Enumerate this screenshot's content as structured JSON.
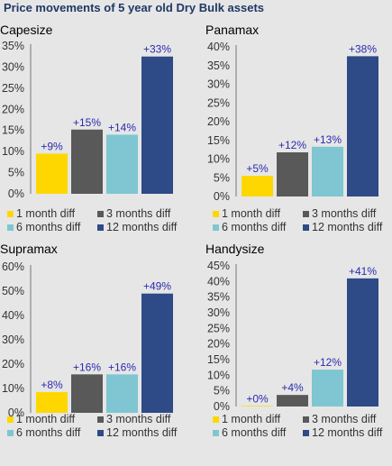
{
  "title": "Price movements of 5 year old Dry Bulk assets",
  "colors": [
    "#ffd700",
    "#595959",
    "#7fc6d2",
    "#2e4a87"
  ],
  "legend": [
    "1 month diff",
    "3 months diff",
    "6 months diff",
    "12 months diff"
  ],
  "chart_data": [
    {
      "type": "bar",
      "title": "Capesize",
      "categories": [
        "1 month diff",
        "3 months diff",
        "6 months diff",
        "12 months diff"
      ],
      "values": [
        9.5,
        15.2,
        14,
        32.5
      ],
      "data_labels": [
        "+9%",
        "+15%",
        "+14%",
        "+33%"
      ],
      "ylim": [
        0,
        35
      ],
      "yticks": [
        "0%",
        "5%",
        "10%",
        "15%",
        "20%",
        "25%",
        "30%",
        "35%"
      ],
      "grid": false,
      "legend_position": "bottom"
    },
    {
      "type": "bar",
      "title": "Panamax",
      "categories": [
        "1 month diff",
        "3 months diff",
        "6 months diff",
        "12 months diff"
      ],
      "values": [
        5.5,
        11.8,
        13.3,
        37.5
      ],
      "data_labels": [
        "+5%",
        "+12%",
        "+13%",
        "+38%"
      ],
      "ylim": [
        0,
        40
      ],
      "yticks": [
        "0%",
        "5%",
        "10%",
        "15%",
        "20%",
        "25%",
        "30%",
        "35%",
        "40%"
      ],
      "grid": false,
      "legend_position": "bottom"
    },
    {
      "type": "bar",
      "title": "Supramax",
      "categories": [
        "1 month diff",
        "3 months diff",
        "6 months diff",
        "12 months diff"
      ],
      "values": [
        8.5,
        15.8,
        15.8,
        49
      ],
      "data_labels": [
        "+8%",
        "+16%",
        "+16%",
        "+49%"
      ],
      "ylim": [
        0,
        60
      ],
      "yticks": [
        "0%",
        "10%",
        "20%",
        "30%",
        "40%",
        "50%",
        "60%"
      ],
      "grid": false,
      "legend_position": "bottom"
    },
    {
      "type": "bar",
      "title": "Handysize",
      "categories": [
        "1 month diff",
        "3 months diff",
        "6 months diff",
        "12 months diff"
      ],
      "values": [
        0.2,
        3.7,
        11.8,
        41
      ],
      "data_labels": [
        "+0%",
        "+4%",
        "+12%",
        "+41%"
      ],
      "ylim": [
        0,
        45
      ],
      "yticks": [
        "0%",
        "5%",
        "10%",
        "15%",
        "20%",
        "25%",
        "30%",
        "35%",
        "40%",
        "45%"
      ],
      "grid": false,
      "legend_position": "bottom"
    }
  ]
}
